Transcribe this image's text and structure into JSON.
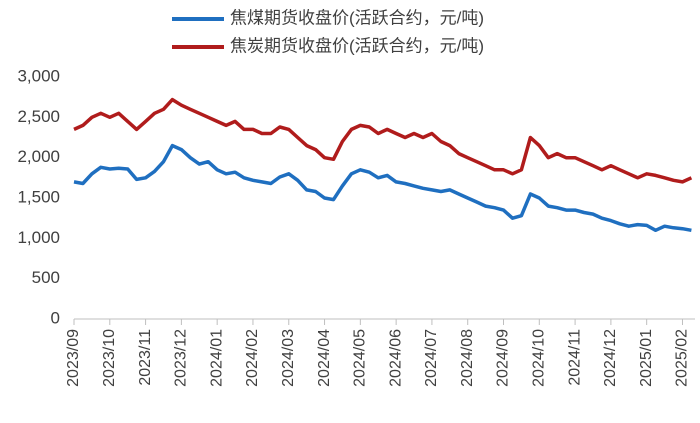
{
  "chart_data": {
    "type": "line",
    "x": [
      0,
      0.25,
      0.5,
      0.75,
      1,
      1.25,
      1.5,
      1.75,
      2,
      2.25,
      2.5,
      2.75,
      3,
      3.25,
      3.5,
      3.75,
      4,
      4.25,
      4.5,
      4.75,
      5,
      5.25,
      5.5,
      5.75,
      6,
      6.25,
      6.5,
      6.75,
      7,
      7.25,
      7.5,
      7.75,
      8,
      8.25,
      8.5,
      8.75,
      9,
      9.25,
      9.5,
      9.75,
      10,
      10.25,
      10.5,
      10.75,
      11,
      11.25,
      11.5,
      11.75,
      12,
      12.25,
      12.5,
      12.75,
      13,
      13.25,
      13.5,
      13.75,
      14,
      14.25,
      14.5,
      14.75,
      15,
      15.25,
      15.5,
      15.75,
      16,
      16.25,
      16.5,
      16.75,
      17,
      17.25
    ],
    "series": [
      {
        "name": "焦煤期货收盘价(活跃合约，元/吨)",
        "color": "#1f6fc0",
        "values": [
          1700,
          1680,
          1800,
          1880,
          1860,
          1870,
          1860,
          1730,
          1750,
          1830,
          1950,
          2150,
          2100,
          2000,
          1920,
          1950,
          1850,
          1800,
          1820,
          1750,
          1720,
          1700,
          1680,
          1760,
          1800,
          1720,
          1600,
          1580,
          1500,
          1480,
          1650,
          1800,
          1850,
          1820,
          1750,
          1780,
          1700,
          1680,
          1650,
          1620,
          1600,
          1580,
          1600,
          1550,
          1500,
          1450,
          1400,
          1380,
          1350,
          1250,
          1280,
          1550,
          1500,
          1400,
          1380,
          1350,
          1350,
          1320,
          1300,
          1250,
          1220,
          1180,
          1150,
          1170,
          1160,
          1100,
          1150,
          1130,
          1120,
          1100
        ]
      },
      {
        "name": "焦炭期货收盘价(活跃合约，元/吨)",
        "color": "#b01c1c",
        "values": [
          2350,
          2400,
          2500,
          2550,
          2500,
          2550,
          2450,
          2350,
          2450,
          2550,
          2600,
          2720,
          2650,
          2600,
          2550,
          2500,
          2450,
          2400,
          2450,
          2350,
          2350,
          2300,
          2300,
          2380,
          2350,
          2250,
          2150,
          2100,
          2000,
          1980,
          2200,
          2350,
          2400,
          2380,
          2300,
          2350,
          2300,
          2250,
          2300,
          2250,
          2300,
          2200,
          2150,
          2050,
          2000,
          1950,
          1900,
          1850,
          1850,
          1800,
          1850,
          2250,
          2150,
          2000,
          2050,
          2000,
          2000,
          1950,
          1900,
          1850,
          1900,
          1850,
          1800,
          1750,
          1800,
          1780,
          1750,
          1720,
          1700,
          1750
        ]
      }
    ],
    "xlim": [
      0,
      17.35
    ],
    "xticks": [
      {
        "value": 0,
        "label": "2023/09"
      },
      {
        "value": 1,
        "label": "2023/10"
      },
      {
        "value": 2,
        "label": "2023/11"
      },
      {
        "value": 3,
        "label": "2023/12"
      },
      {
        "value": 4,
        "label": "2024/01"
      },
      {
        "value": 5,
        "label": "2024/02"
      },
      {
        "value": 6,
        "label": "2024/03"
      },
      {
        "value": 7,
        "label": "2024/04"
      },
      {
        "value": 8,
        "label": "2024/05"
      },
      {
        "value": 9,
        "label": "2024/06"
      },
      {
        "value": 10,
        "label": "2024/07"
      },
      {
        "value": 11,
        "label": "2024/08"
      },
      {
        "value": 12,
        "label": "2024/09"
      },
      {
        "value": 13,
        "label": "2024/10"
      },
      {
        "value": 14,
        "label": "2024/11"
      },
      {
        "value": 15,
        "label": "2024/12"
      },
      {
        "value": 16,
        "label": "2025/01"
      },
      {
        "value": 17,
        "label": "2025/02"
      }
    ],
    "ylim": [
      0,
      3000
    ],
    "yticks": [
      0,
      500,
      {
        "value": 1000,
        "label": "1,000"
      },
      {
        "value": 1500,
        "label": "1,500"
      },
      {
        "value": 2000,
        "label": "2,000"
      },
      {
        "value": 2500,
        "label": "2,500"
      },
      {
        "value": 3000,
        "label": "3,000"
      }
    ],
    "legend": "top"
  }
}
